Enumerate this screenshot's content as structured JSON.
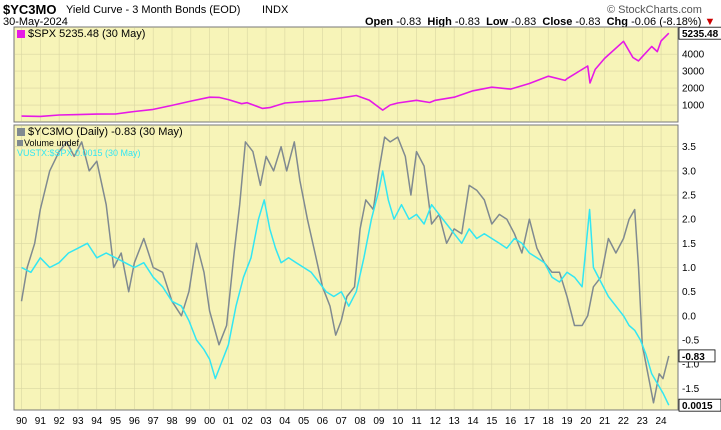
{
  "header": {
    "symbol": "$YC3MO",
    "name": "Yield Curve - 3 Month Bonds (EOD)",
    "exchange": "INDX",
    "date": "30-May-2024",
    "open_label": "Open",
    "open": "-0.83",
    "high_label": "High",
    "high": "-0.83",
    "low_label": "Low",
    "low": "-0.83",
    "close_label": "Close",
    "close": "-0.83",
    "chg_label": "Chg",
    "chg": "-0.06 (-8.18%)",
    "chg_arrow": "▼",
    "watermark": "© StockCharts.com"
  },
  "colors": {
    "panel_bg": "#f7f4b8",
    "grid": "#d9d6a2",
    "spx": "#e619e6",
    "yc3mo": "#808a90",
    "ratio": "#33e6f2",
    "chg_red": "#cc0000"
  },
  "chart_data": [
    {
      "type": "line",
      "panel": "top",
      "legend": "$SPX 5235.48 (30 May)",
      "last_value_label": "5235.48",
      "series": [
        {
          "name": "$SPX",
          "points": [
            [
              1990.0,
              350
            ],
            [
              1991.0,
              330
            ],
            [
              1992.0,
              410
            ],
            [
              1993.0,
              435
            ],
            [
              1994.0,
              465
            ],
            [
              1995.0,
              470
            ],
            [
              1996.0,
              620
            ],
            [
              1997.0,
              740
            ],
            [
              1998.0,
              980
            ],
            [
              1999.0,
              1230
            ],
            [
              2000.0,
              1460
            ],
            [
              2000.5,
              1450
            ],
            [
              2001.0,
              1320
            ],
            [
              2001.7,
              1080
            ],
            [
              2002.0,
              1140
            ],
            [
              2002.8,
              800
            ],
            [
              2003.2,
              850
            ],
            [
              2004.0,
              1120
            ],
            [
              2005.0,
              1200
            ],
            [
              2006.0,
              1270
            ],
            [
              2007.0,
              1420
            ],
            [
              2007.8,
              1560
            ],
            [
              2008.5,
              1280
            ],
            [
              2009.2,
              700
            ],
            [
              2009.6,
              1000
            ],
            [
              2010.0,
              1120
            ],
            [
              2011.0,
              1280
            ],
            [
              2011.7,
              1150
            ],
            [
              2012.0,
              1280
            ],
            [
              2013.0,
              1460
            ],
            [
              2014.0,
              1840
            ],
            [
              2015.0,
              2050
            ],
            [
              2016.0,
              1940
            ],
            [
              2017.0,
              2270
            ],
            [
              2018.0,
              2700
            ],
            [
              2018.9,
              2450
            ],
            [
              2019.0,
              2550
            ],
            [
              2020.1,
              3300
            ],
            [
              2020.22,
              2300
            ],
            [
              2020.5,
              3100
            ],
            [
              2021.0,
              3750
            ],
            [
              2022.0,
              4760
            ],
            [
              2022.5,
              3800
            ],
            [
              2022.8,
              3600
            ],
            [
              2023.0,
              3850
            ],
            [
              2023.5,
              4450
            ],
            [
              2023.8,
              4150
            ],
            [
              2024.0,
              4780
            ],
            [
              2024.41,
              5235
            ]
          ]
        }
      ],
      "yticks": [
        1000,
        2000,
        3000,
        4000
      ],
      "ylim": [
        0,
        5600
      ]
    },
    {
      "type": "line",
      "panel": "bottom",
      "legend_lines": [
        "$YC3MO (Daily) -0.83 (30 May)",
        "Volume undef",
        "VUSTX:$SPX 0.0015 (30 May)"
      ],
      "last_value_labels": [
        "-0.83",
        "0.0015"
      ],
      "series": [
        {
          "name": "$YC3MO",
          "points": [
            [
              1990.0,
              0.3
            ],
            [
              1990.3,
              1.0
            ],
            [
              1990.7,
              1.5
            ],
            [
              1991.0,
              2.2
            ],
            [
              1991.5,
              3.0
            ],
            [
              1992.0,
              3.4
            ],
            [
              1992.4,
              3.6
            ],
            [
              1992.8,
              3.3
            ],
            [
              1993.2,
              3.6
            ],
            [
              1993.6,
              3.0
            ],
            [
              1994.0,
              3.2
            ],
            [
              1994.5,
              2.3
            ],
            [
              1994.9,
              1.0
            ],
            [
              1995.3,
              1.3
            ],
            [
              1995.7,
              0.5
            ],
            [
              1996.0,
              1.1
            ],
            [
              1996.5,
              1.6
            ],
            [
              1997.0,
              1.0
            ],
            [
              1997.5,
              0.9
            ],
            [
              1998.0,
              0.3
            ],
            [
              1998.5,
              0.0
            ],
            [
              1998.9,
              0.5
            ],
            [
              1999.3,
              1.5
            ],
            [
              1999.7,
              0.9
            ],
            [
              2000.0,
              0.1
            ],
            [
              2000.5,
              -0.6
            ],
            [
              2000.9,
              -0.2
            ],
            [
              2001.3,
              1.3
            ],
            [
              2001.6,
              2.3
            ],
            [
              2001.9,
              3.6
            ],
            [
              2002.3,
              3.4
            ],
            [
              2002.7,
              2.7
            ],
            [
              2003.0,
              3.3
            ],
            [
              2003.4,
              3.0
            ],
            [
              2003.8,
              3.5
            ],
            [
              2004.1,
              3.0
            ],
            [
              2004.5,
              3.6
            ],
            [
              2004.8,
              2.8
            ],
            [
              2005.2,
              2.0
            ],
            [
              2005.6,
              1.3
            ],
            [
              2006.0,
              0.6
            ],
            [
              2006.4,
              0.2
            ],
            [
              2006.7,
              -0.4
            ],
            [
              2007.0,
              -0.1
            ],
            [
              2007.3,
              0.4
            ],
            [
              2007.7,
              0.6
            ],
            [
              2008.0,
              1.8
            ],
            [
              2008.3,
              2.4
            ],
            [
              2008.7,
              2.2
            ],
            [
              2009.0,
              3.0
            ],
            [
              2009.3,
              3.7
            ],
            [
              2009.6,
              3.6
            ],
            [
              2010.0,
              3.7
            ],
            [
              2010.4,
              3.3
            ],
            [
              2010.7,
              2.5
            ],
            [
              2011.0,
              3.4
            ],
            [
              2011.4,
              3.1
            ],
            [
              2011.8,
              1.9
            ],
            [
              2012.2,
              2.1
            ],
            [
              2012.6,
              1.5
            ],
            [
              2013.0,
              1.8
            ],
            [
              2013.4,
              1.7
            ],
            [
              2013.8,
              2.7
            ],
            [
              2014.2,
              2.6
            ],
            [
              2014.6,
              2.4
            ],
            [
              2015.0,
              1.9
            ],
            [
              2015.4,
              2.1
            ],
            [
              2015.8,
              2.0
            ],
            [
              2016.2,
              1.7
            ],
            [
              2016.6,
              1.3
            ],
            [
              2017.0,
              2.0
            ],
            [
              2017.4,
              1.4
            ],
            [
              2017.8,
              1.1
            ],
            [
              2018.2,
              0.9
            ],
            [
              2018.6,
              0.9
            ],
            [
              2019.0,
              0.4
            ],
            [
              2019.4,
              -0.2
            ],
            [
              2019.8,
              -0.2
            ],
            [
              2020.1,
              0.0
            ],
            [
              2020.4,
              0.6
            ],
            [
              2020.8,
              0.8
            ],
            [
              2021.2,
              1.6
            ],
            [
              2021.6,
              1.3
            ],
            [
              2022.0,
              1.6
            ],
            [
              2022.3,
              2.0
            ],
            [
              2022.6,
              2.2
            ],
            [
              2022.8,
              1.0
            ],
            [
              2023.0,
              -0.6
            ],
            [
              2023.3,
              -1.2
            ],
            [
              2023.6,
              -1.8
            ],
            [
              2023.9,
              -1.2
            ],
            [
              2024.1,
              -1.3
            ],
            [
              2024.41,
              -0.83
            ]
          ]
        },
        {
          "name": "VUSTX:$SPX",
          "points": [
            [
              1990.0,
              1.0
            ],
            [
              1990.5,
              0.9
            ],
            [
              1991.0,
              1.2
            ],
            [
              1991.5,
              1.0
            ],
            [
              1992.0,
              1.1
            ],
            [
              1992.5,
              1.3
            ],
            [
              1993.0,
              1.4
            ],
            [
              1993.5,
              1.5
            ],
            [
              1994.0,
              1.2
            ],
            [
              1994.5,
              1.3
            ],
            [
              1995.0,
              1.2
            ],
            [
              1995.5,
              1.1
            ],
            [
              1996.0,
              1.0
            ],
            [
              1996.5,
              1.1
            ],
            [
              1997.0,
              0.8
            ],
            [
              1997.5,
              0.6
            ],
            [
              1998.0,
              0.3
            ],
            [
              1998.5,
              0.2
            ],
            [
              1998.9,
              -0.1
            ],
            [
              1999.3,
              -0.5
            ],
            [
              1999.7,
              -0.7
            ],
            [
              2000.0,
              -0.9
            ],
            [
              2000.3,
              -1.3
            ],
            [
              2000.6,
              -1.0
            ],
            [
              2001.0,
              -0.6
            ],
            [
              2001.4,
              0.2
            ],
            [
              2001.8,
              0.8
            ],
            [
              2002.2,
              1.2
            ],
            [
              2002.6,
              2.0
            ],
            [
              2002.9,
              2.4
            ],
            [
              2003.2,
              1.8
            ],
            [
              2003.5,
              1.4
            ],
            [
              2003.8,
              1.1
            ],
            [
              2004.2,
              1.2
            ],
            [
              2004.6,
              1.1
            ],
            [
              2005.0,
              1.0
            ],
            [
              2005.4,
              0.9
            ],
            [
              2005.8,
              0.7
            ],
            [
              2006.2,
              0.5
            ],
            [
              2006.6,
              0.4
            ],
            [
              2007.0,
              0.5
            ],
            [
              2007.4,
              0.2
            ],
            [
              2007.8,
              0.5
            ],
            [
              2008.2,
              1.2
            ],
            [
              2008.6,
              2.0
            ],
            [
              2009.0,
              2.6
            ],
            [
              2009.2,
              3.0
            ],
            [
              2009.5,
              2.4
            ],
            [
              2009.8,
              2.0
            ],
            [
              2010.2,
              2.3
            ],
            [
              2010.6,
              2.0
            ],
            [
              2011.0,
              2.1
            ],
            [
              2011.4,
              1.9
            ],
            [
              2011.8,
              2.3
            ],
            [
              2012.2,
              2.1
            ],
            [
              2012.6,
              1.9
            ],
            [
              2013.0,
              1.7
            ],
            [
              2013.4,
              1.5
            ],
            [
              2013.8,
              1.8
            ],
            [
              2014.2,
              1.6
            ],
            [
              2014.6,
              1.7
            ],
            [
              2015.0,
              1.6
            ],
            [
              2015.4,
              1.5
            ],
            [
              2015.8,
              1.4
            ],
            [
              2016.2,
              1.6
            ],
            [
              2016.6,
              1.5
            ],
            [
              2017.0,
              1.3
            ],
            [
              2017.4,
              1.2
            ],
            [
              2017.8,
              1.1
            ],
            [
              2018.2,
              0.8
            ],
            [
              2018.6,
              0.7
            ],
            [
              2019.0,
              0.9
            ],
            [
              2019.4,
              0.8
            ],
            [
              2019.8,
              0.6
            ],
            [
              2020.2,
              2.2
            ],
            [
              2020.4,
              1.0
            ],
            [
              2020.8,
              0.7
            ],
            [
              2021.2,
              0.4
            ],
            [
              2021.6,
              0.2
            ],
            [
              2022.0,
              0.0
            ],
            [
              2022.3,
              -0.2
            ],
            [
              2022.6,
              -0.3
            ],
            [
              2022.9,
              -0.5
            ],
            [
              2023.2,
              -0.8
            ],
            [
              2023.5,
              -1.2
            ],
            [
              2023.8,
              -1.4
            ],
            [
              2024.1,
              -1.6
            ],
            [
              2024.41,
              -1.85
            ]
          ]
        }
      ],
      "yticks": [
        -1.5,
        -1.0,
        -0.5,
        0.0,
        0.5,
        1.0,
        1.5,
        2.0,
        2.5,
        3.0,
        3.5
      ],
      "ytick_labels": [
        "-1.5",
        "-1.0",
        "-0.5",
        "0.0",
        "0.5",
        "1.0",
        "1.5",
        "2.0",
        "2.5",
        "3.0",
        "3.5"
      ],
      "ylim": [
        -1.95,
        3.95
      ]
    }
  ],
  "x_axis": {
    "range": [
      1989.6,
      2024.9
    ],
    "ticks": [
      1990,
      1991,
      1992,
      1993,
      1994,
      1995,
      1996,
      1997,
      1998,
      1999,
      2000,
      2001,
      2002,
      2003,
      2004,
      2005,
      2006,
      2007,
      2008,
      2009,
      2010,
      2011,
      2012,
      2013,
      2014,
      2015,
      2016,
      2017,
      2018,
      2019,
      2020,
      2021,
      2022,
      2023,
      2024
    ],
    "tick_labels": [
      "90",
      "91",
      "92",
      "93",
      "94",
      "95",
      "96",
      "97",
      "98",
      "99",
      "00",
      "01",
      "02",
      "03",
      "04",
      "05",
      "06",
      "07",
      "08",
      "09",
      "10",
      "11",
      "12",
      "13",
      "14",
      "15",
      "16",
      "17",
      "18",
      "19",
      "20",
      "21",
      "22",
      "23",
      "24"
    ]
  }
}
